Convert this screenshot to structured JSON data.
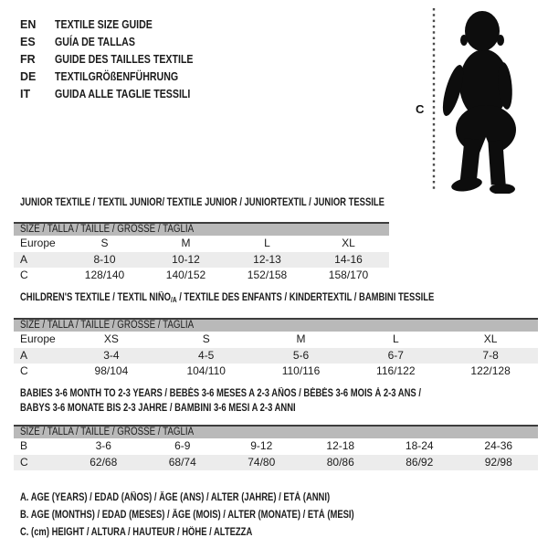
{
  "languages": [
    {
      "code": "EN",
      "title": "TEXTILE SIZE GUIDE"
    },
    {
      "code": "ES",
      "title": "GUÍA DE TALLAS"
    },
    {
      "code": "FR",
      "title": "GUIDE DES TAILLES TEXTILE"
    },
    {
      "code": "DE",
      "title": "TEXTILGRÖßENFÜHRUNG"
    },
    {
      "code": "IT",
      "title": "GUIDA ALLE TAGLIE TESSILI"
    }
  ],
  "figure": {
    "label": "C"
  },
  "sections": [
    {
      "id": "junior",
      "heading_lines": [
        [
          {
            "text": "JUNIOR TEXTILE / TEXTIL JUNIOR/ TEXTILE JUNIOR / JUNIORTEXTIL / JUNIOR TESSILE"
          }
        ]
      ],
      "table": {
        "size_header": "SIZE / TALLA / TAILLE / GRÖSSE / TAGLIA",
        "rows": [
          {
            "label": "Europe",
            "shade": false,
            "cells": [
              "S",
              "M",
              "L",
              "XL"
            ]
          },
          {
            "label": "A",
            "shade": true,
            "cells": [
              "8-10",
              "10-12",
              "12-13",
              "14-16"
            ]
          },
          {
            "label": "C",
            "shade": false,
            "cells": [
              "128/140",
              "140/152",
              "152/158",
              "158/170"
            ]
          }
        ]
      }
    },
    {
      "id": "children",
      "heading_lines": [
        [
          {
            "text": "CHILDREN'S TEXTILE / TEXTIL NIÑO"
          },
          {
            "text": "/A",
            "sub": true
          },
          {
            "text": " / TEXTILE DES ENFANTS / KINDERTEXTIL / BAMBINI TESSILE"
          }
        ]
      ],
      "table": {
        "size_header": "SIZE / TALLA / TAILLE / GRÖSSE / TAGLIA",
        "rows": [
          {
            "label": "Europe",
            "shade": false,
            "cells": [
              "XS",
              "S",
              "M",
              "L",
              "XL"
            ]
          },
          {
            "label": "A",
            "shade": true,
            "cells": [
              "3-4",
              "4-5",
              "5-6",
              "6-7",
              "7-8"
            ]
          },
          {
            "label": "C",
            "shade": false,
            "cells": [
              "98/104",
              "104/110",
              "110/116",
              "116/122",
              "122/128"
            ]
          }
        ]
      }
    },
    {
      "id": "babies",
      "heading_lines": [
        [
          {
            "text": "BABIES 3-6 MONTH TO 2-3 YEARS / BEBÉS 3-6 MESES A 2-3 AÑOS / BÉBÉS 3-6 MOIS À 2-3 ANS /"
          }
        ],
        [
          {
            "text": "BABYS 3-6 MONATE BIS 2-3 JAHRE / BAMBINI 3-6 MESI A 2-3 ANNI"
          }
        ]
      ],
      "table": {
        "size_header": "SIZE / TALLA / TAILLE / GRÖSSE / TAGLIA",
        "rows": [
          {
            "label": "B",
            "shade": false,
            "cells": [
              "3-6",
              "6-9",
              "9-12",
              "12-18",
              "18-24",
              "24-36"
            ]
          },
          {
            "label": "C",
            "shade": true,
            "cells": [
              "62/68",
              "68/74",
              "74/80",
              "80/86",
              "86/92",
              "92/98"
            ]
          }
        ]
      }
    }
  ],
  "notes": [
    "A. AGE (YEARS) / EDAD (AÑOS) / ÂGE (ANS) / ALTER (JAHRE) / ETÀ (ANNI)",
    "B. AGE (MONTHS) / EDAD (MESES) / ÂGE (MOIS) / ALTER (MONATE) / ETÀ (MESI)",
    "C. (cm) HEIGHT / ALTURA / HAUTEUR / HÖHE / ALTEZZA"
  ],
  "colors": {
    "header_bar": "#b9b9b9",
    "shaded_row": "#ececec",
    "text": "#1b1b1b",
    "table_top_border": "#3d3d3d",
    "silhouette": "#0d0d0d"
  }
}
